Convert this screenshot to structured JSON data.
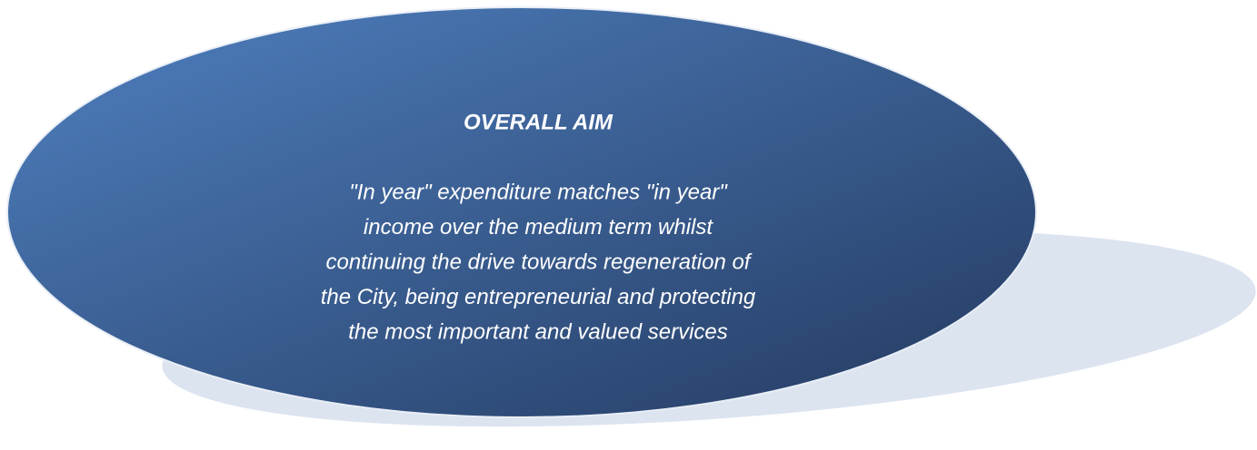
{
  "title": "OVERALL AIM",
  "lines": [
    "\"In year\" expenditure matches \"in year\"",
    "income over the medium term whilst",
    "continuing the drive towards regeneration of",
    "the City, being entrepreneurial and protecting",
    "the most important and valued services"
  ]
}
